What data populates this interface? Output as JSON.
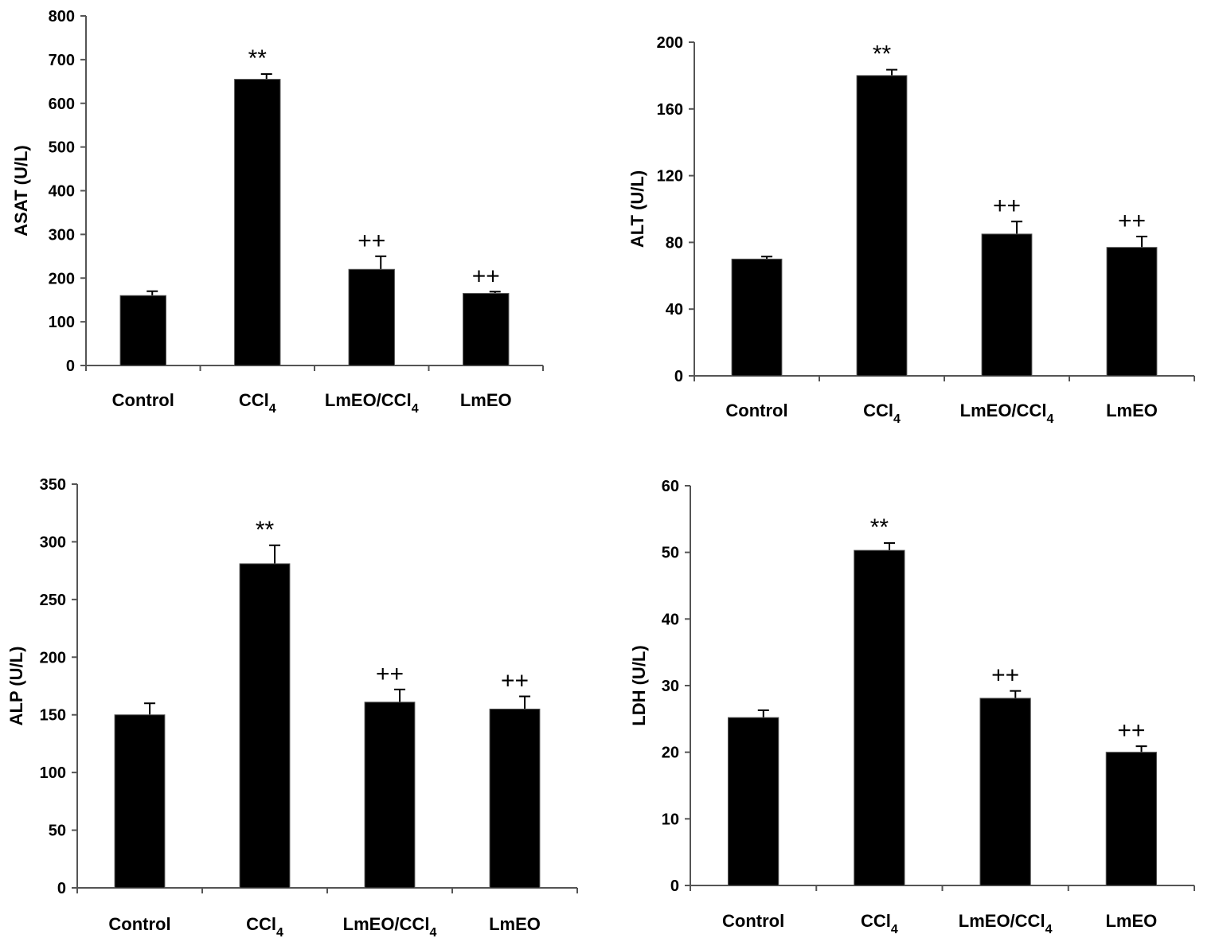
{
  "colors": {
    "bar": "#000000",
    "axis": "#555555",
    "background": "#ffffff"
  },
  "chart_data": [
    {
      "type": "bar",
      "ylabel": "ASAT (U/L)",
      "ylim": [
        0,
        800
      ],
      "yticks": [
        0,
        100,
        200,
        300,
        400,
        500,
        600,
        700,
        800
      ],
      "categories": [
        {
          "main": "Control",
          "sub": ""
        },
        {
          "main": "CCl",
          "sub": "4"
        },
        {
          "main": "LmEO/CCl",
          "sub": "4"
        },
        {
          "main": "LmEO",
          "sub": ""
        }
      ],
      "values": [
        160,
        655,
        220,
        165
      ],
      "errors": [
        10,
        12,
        30,
        4
      ],
      "annotations": [
        "",
        "**",
        "++",
        "++"
      ]
    },
    {
      "type": "bar",
      "ylabel": "ALT (U/L)",
      "ylim": [
        0,
        200
      ],
      "yticks": [
        0,
        40,
        80,
        120,
        160,
        200
      ],
      "categories": [
        {
          "main": "Control",
          "sub": ""
        },
        {
          "main": "CCl",
          "sub": "4"
        },
        {
          "main": "LmEO/CCl",
          "sub": "4"
        },
        {
          "main": "LmEO",
          "sub": ""
        }
      ],
      "values": [
        70,
        180,
        85,
        77
      ],
      "errors": [
        1.5,
        3.5,
        7.5,
        6.5
      ],
      "annotations": [
        "",
        "**",
        "++",
        "++"
      ]
    },
    {
      "type": "bar",
      "ylabel": "ALP (U/L)",
      "ylim": [
        0,
        350
      ],
      "yticks": [
        0,
        50,
        100,
        150,
        200,
        250,
        300,
        350
      ],
      "categories": [
        {
          "main": "Control",
          "sub": ""
        },
        {
          "main": "CCl",
          "sub": "4"
        },
        {
          "main": "LmEO/CCl",
          "sub": "4"
        },
        {
          "main": "LmEO",
          "sub": ""
        }
      ],
      "values": [
        150,
        281,
        161,
        155
      ],
      "errors": [
        10,
        16,
        11,
        11
      ],
      "annotations": [
        "",
        "**",
        "++",
        "++"
      ]
    },
    {
      "type": "bar",
      "ylabel": "LDH (U/L)",
      "ylim": [
        0,
        60
      ],
      "yticks": [
        0,
        10,
        20,
        30,
        40,
        50,
        60
      ],
      "categories": [
        {
          "main": "Control",
          "sub": ""
        },
        {
          "main": "CCl",
          "sub": "4"
        },
        {
          "main": "LmEO/CCl",
          "sub": "4"
        },
        {
          "main": "LmEO",
          "sub": ""
        }
      ],
      "values": [
        25.2,
        50.3,
        28.1,
        20
      ],
      "errors": [
        1.1,
        1.1,
        1.1,
        0.9
      ],
      "annotations": [
        "",
        "**",
        "++",
        "++"
      ]
    }
  ]
}
